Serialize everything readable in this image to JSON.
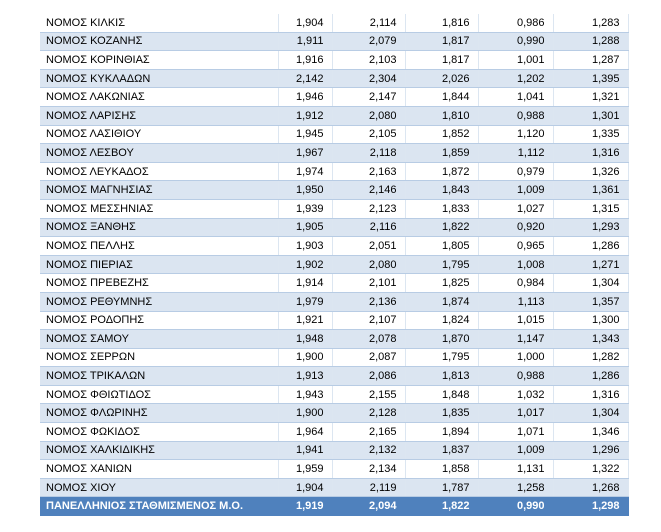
{
  "table": {
    "rows": [
      [
        "ΝΟΜΟΣ ΚΙΛΚΙΣ",
        "1,904",
        "2,114",
        "1,816",
        "0,986",
        "1,283"
      ],
      [
        "ΝΟΜΟΣ ΚΟΖΑΝΗΣ",
        "1,911",
        "2,079",
        "1,817",
        "0,990",
        "1,288"
      ],
      [
        "ΝΟΜΟΣ ΚΟΡΙΝΘΙΑΣ",
        "1,916",
        "2,103",
        "1,817",
        "1,001",
        "1,287"
      ],
      [
        "ΝΟΜΟΣ ΚΥΚΛΑΔΩΝ",
        "2,142",
        "2,304",
        "2,026",
        "1,202",
        "1,395"
      ],
      [
        "ΝΟΜΟΣ ΛΑΚΩΝΙΑΣ",
        "1,946",
        "2,147",
        "1,844",
        "1,041",
        "1,321"
      ],
      [
        "ΝΟΜΟΣ ΛΑΡΙΣΗΣ",
        "1,912",
        "2,080",
        "1,810",
        "0,988",
        "1,301"
      ],
      [
        "ΝΟΜΟΣ ΛΑΣΙΘΙΟΥ",
        "1,945",
        "2,105",
        "1,852",
        "1,120",
        "1,335"
      ],
      [
        "ΝΟΜΟΣ ΛΕΣΒΟΥ",
        "1,967",
        "2,118",
        "1,859",
        "1,112",
        "1,316"
      ],
      [
        "ΝΟΜΟΣ ΛΕΥΚΑΔΟΣ",
        "1,974",
        "2,163",
        "1,872",
        "0,979",
        "1,326"
      ],
      [
        "ΝΟΜΟΣ ΜΑΓΝΗΣΙΑΣ",
        "1,950",
        "2,146",
        "1,843",
        "1,009",
        "1,361"
      ],
      [
        "ΝΟΜΟΣ ΜΕΣΣΗΝΙΑΣ",
        "1,939",
        "2,123",
        "1,833",
        "1,027",
        "1,315"
      ],
      [
        "ΝΟΜΟΣ ΞΑΝΘΗΣ",
        "1,905",
        "2,116",
        "1,822",
        "0,920",
        "1,293"
      ],
      [
        "ΝΟΜΟΣ ΠΕΛΛΗΣ",
        "1,903",
        "2,051",
        "1,805",
        "0,965",
        "1,286"
      ],
      [
        "ΝΟΜΟΣ ΠΙΕΡΙΑΣ",
        "1,902",
        "2,080",
        "1,795",
        "1,008",
        "1,271"
      ],
      [
        "ΝΟΜΟΣ ΠΡΕΒΕΖΗΣ",
        "1,914",
        "2,101",
        "1,825",
        "0,984",
        "1,304"
      ],
      [
        "ΝΟΜΟΣ ΡΕΘΥΜΝΗΣ",
        "1,979",
        "2,136",
        "1,874",
        "1,113",
        "1,357"
      ],
      [
        "ΝΟΜΟΣ ΡΟΔΟΠΗΣ",
        "1,921",
        "2,107",
        "1,824",
        "1,015",
        "1,300"
      ],
      [
        "ΝΟΜΟΣ ΣΑΜΟΥ",
        "1,948",
        "2,078",
        "1,870",
        "1,147",
        "1,343"
      ],
      [
        "ΝΟΜΟΣ ΣΕΡΡΩΝ",
        "1,900",
        "2,087",
        "1,795",
        "1,000",
        "1,282"
      ],
      [
        "ΝΟΜΟΣ ΤΡΙΚΑΛΩΝ",
        "1,913",
        "2,086",
        "1,813",
        "0,988",
        "1,286"
      ],
      [
        "ΝΟΜΟΣ ΦΘΙΩΤΙΔΟΣ",
        "1,943",
        "2,155",
        "1,848",
        "1,032",
        "1,316"
      ],
      [
        "ΝΟΜΟΣ ΦΛΩΡΙΝΗΣ",
        "1,900",
        "2,128",
        "1,835",
        "1,017",
        "1,304"
      ],
      [
        "ΝΟΜΟΣ ΦΩΚΙΔΟΣ",
        "1,964",
        "2,165",
        "1,894",
        "1,071",
        "1,346"
      ],
      [
        "ΝΟΜΟΣ ΧΑΛΚΙΔΙΚΗΣ",
        "1,941",
        "2,132",
        "1,837",
        "1,009",
        "1,296"
      ],
      [
        "ΝΟΜΟΣ ΧΑΝΙΩΝ",
        "1,959",
        "2,134",
        "1,858",
        "1,131",
        "1,322"
      ],
      [
        "ΝΟΜΟΣ ΧΙΟΥ",
        "1,904",
        "2,119",
        "1,787",
        "1,258",
        "1,268"
      ]
    ],
    "total": [
      "ΠΑΝΕΛΛΗΝΙΟΣ ΣΤΑΘΜΙΣΜΕΝΟΣ Μ.Ο.",
      "1,919",
      "2,094",
      "1,822",
      "0,990",
      "1,298"
    ]
  }
}
